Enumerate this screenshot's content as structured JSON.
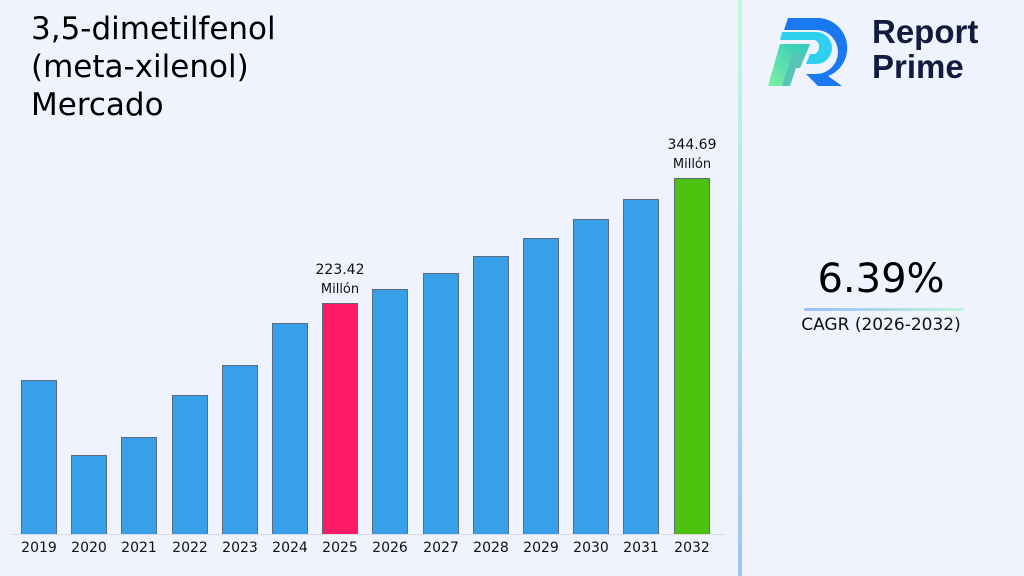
{
  "title": {
    "line1": "3,5-dimetilfenol",
    "line2": "(meta-xilenol)",
    "line3": "Mercado"
  },
  "logo": {
    "line1": "Report",
    "line2": "Prime"
  },
  "cagr": {
    "value": "6.39%",
    "label": "CAGR (2026-2032)"
  },
  "colors": {
    "bar_default": "#37a0e8",
    "bar_highlight_base": "#ff1a66",
    "bar_highlight_final": "#4cc10e",
    "background": "#eef3fd"
  },
  "annotations": [
    {
      "year": "2025",
      "value": "223.42",
      "unit": "Millón"
    },
    {
      "year": "2032",
      "value": "344.69",
      "unit": "Millón"
    }
  ],
  "chart_data": {
    "type": "bar",
    "title": "3,5-dimetilfenol (meta-xilenol) Mercado",
    "xlabel": "",
    "ylabel": "Millón",
    "categories": [
      "2019",
      "2020",
      "2021",
      "2022",
      "2023",
      "2024",
      "2025",
      "2026",
      "2027",
      "2028",
      "2029",
      "2030",
      "2031",
      "2032"
    ],
    "values": [
      149.1,
      76.5,
      93.9,
      134.6,
      163.6,
      204.3,
      223.42,
      237.7,
      252.9,
      269.1,
      286.3,
      304.6,
      324.0,
      344.69
    ],
    "highlight": {
      "2025": "#ff1a66",
      "2032": "#4cc10e"
    },
    "data_labels": {
      "2025": "223.42 Millón",
      "2032": "344.69 Millón"
    },
    "ylim": [
      0,
      360
    ],
    "grid": false,
    "legend": null,
    "cagr": "6.39%",
    "cagr_period": "2026-2032"
  }
}
